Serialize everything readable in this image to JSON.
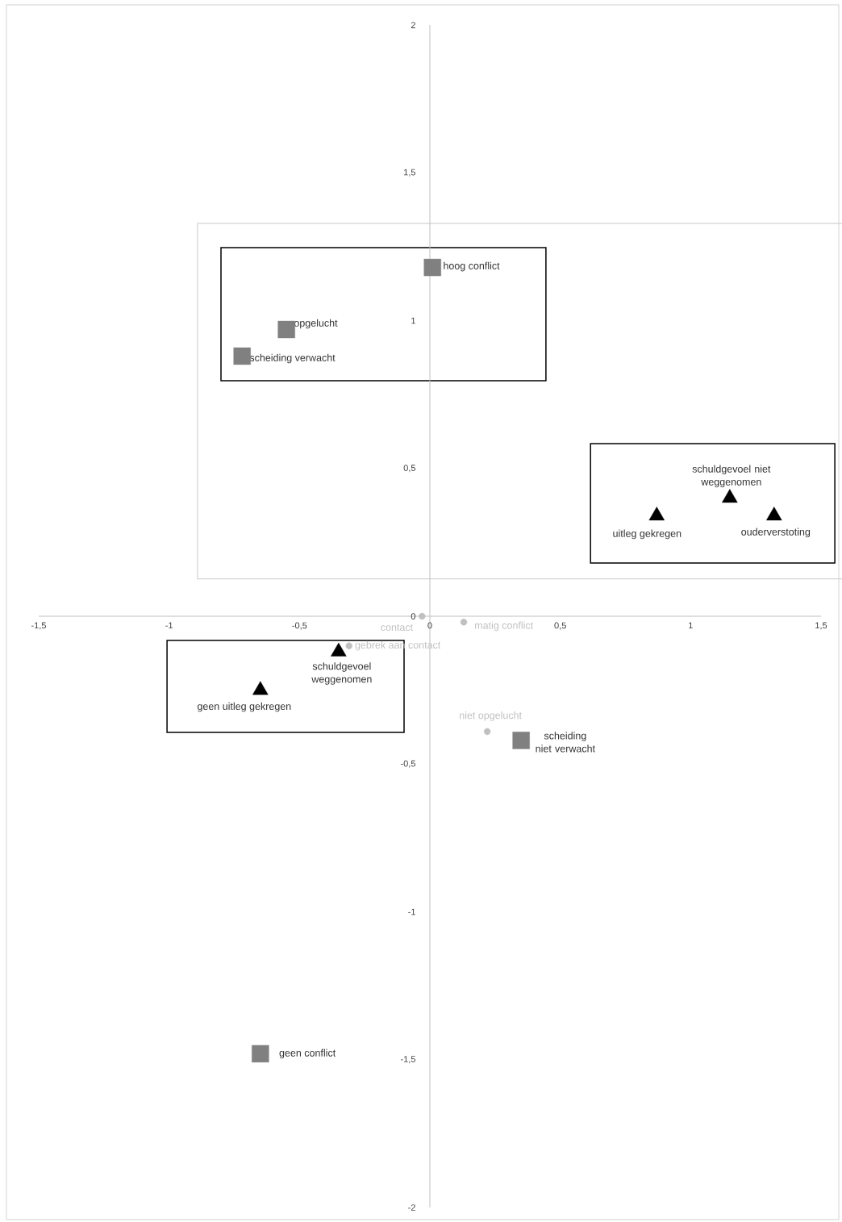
{
  "chart_data": {
    "type": "scatter",
    "xlim": [
      -1.5,
      1.5
    ],
    "ylim": [
      -2,
      2
    ],
    "xticks": [
      {
        "value": -1.5,
        "label": "-1,5"
      },
      -1,
      {
        "value": -0.5,
        "label": "-0,5"
      },
      0,
      {
        "value": 0.5,
        "label": "0,5"
      },
      1,
      {
        "value": 1.5,
        "label": "1,5"
      }
    ],
    "yticks": [
      2,
      {
        "value": 1.5,
        "label": "1,5"
      },
      1,
      {
        "value": 0.5,
        "label": "0,5"
      },
      0,
      {
        "value": -0.5,
        "label": "-0,5"
      },
      -1,
      {
        "value": -1.5,
        "label": "-1,5"
      },
      -2
    ],
    "series": [
      {
        "color": "#808080",
        "marker": "square",
        "x": [
          0.01,
          -0.55,
          -0.72,
          0.35,
          -0.65
        ],
        "values": [
          1.18,
          0.97,
          0.88,
          -0.42,
          -1.48
        ]
      },
      {
        "color": "#000000",
        "marker": "triangle",
        "x": [
          1.15,
          0.87,
          1.32,
          -0.35,
          -0.65
        ],
        "values": [
          0.4,
          0.34,
          0.34,
          -0.12,
          -0.25
        ]
      },
      {
        "color": "#c0c0c0",
        "marker": "circle",
        "x": [
          -0.03,
          -0.31,
          0.13,
          0.22
        ],
        "values": [
          0.0,
          -0.1,
          -0.02,
          -0.39
        ]
      }
    ],
    "annotations": [
      {
        "text": "hoog conflict",
        "x": 0.01,
        "y": 1.18
      },
      {
        "text": "opgelucht",
        "x": -0.55,
        "y": 0.97
      },
      {
        "text": "scheiding verwacht",
        "x": -0.72,
        "y": 0.88
      },
      {
        "text": "scheiding niet verwacht",
        "x": 0.35,
        "y": -0.42
      },
      {
        "text": "geen conflict",
        "x": -0.65,
        "y": -1.48
      },
      {
        "text": "schuldgevoel niet weggenomen",
        "x": 1.15,
        "y": 0.4
      },
      {
        "text": "uitleg gekregen",
        "x": 0.87,
        "y": 0.34
      },
      {
        "text": "ouderverstoting",
        "x": 1.32,
        "y": 0.34
      },
      {
        "text": "schuldgevoel weggenomen",
        "x": -0.35,
        "y": -0.12
      },
      {
        "text": "geen uitleg gekregen",
        "x": -0.65,
        "y": -0.25
      },
      {
        "text": "contact",
        "x": -0.03,
        "y": 0.0
      },
      {
        "text": "gebrek aan contact",
        "x": -0.31,
        "y": -0.1
      },
      {
        "text": "matig conflict",
        "x": 0.13,
        "y": -0.02
      },
      {
        "text": "niet opgelucht",
        "x": 0.22,
        "y": -0.39
      }
    ]
  }
}
